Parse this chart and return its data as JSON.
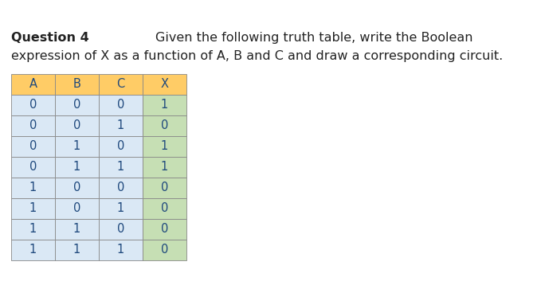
{
  "title_bold": "Question 4",
  "title_rest": "Given the following truth table, write the Boolean",
  "subtitle": "expression of X as a function of A, B and C and draw a corresponding circuit.",
  "headers": [
    "A",
    "B",
    "C",
    "X"
  ],
  "rows": [
    [
      0,
      0,
      0,
      1
    ],
    [
      0,
      0,
      1,
      0
    ],
    [
      0,
      1,
      0,
      1
    ],
    [
      0,
      1,
      1,
      1
    ],
    [
      1,
      0,
      0,
      0
    ],
    [
      1,
      0,
      1,
      0
    ],
    [
      1,
      1,
      0,
      0
    ],
    [
      1,
      1,
      1,
      0
    ]
  ],
  "header_color": "#FFCC66",
  "row_color_abc": "#DAE8F5",
  "row_color_x": "#C6DFB4",
  "text_color": "#1F497D",
  "border_color": "#888888",
  "background_color": "#FFFFFF",
  "fontsize_title": 11.5,
  "fontsize_table": 10.5
}
